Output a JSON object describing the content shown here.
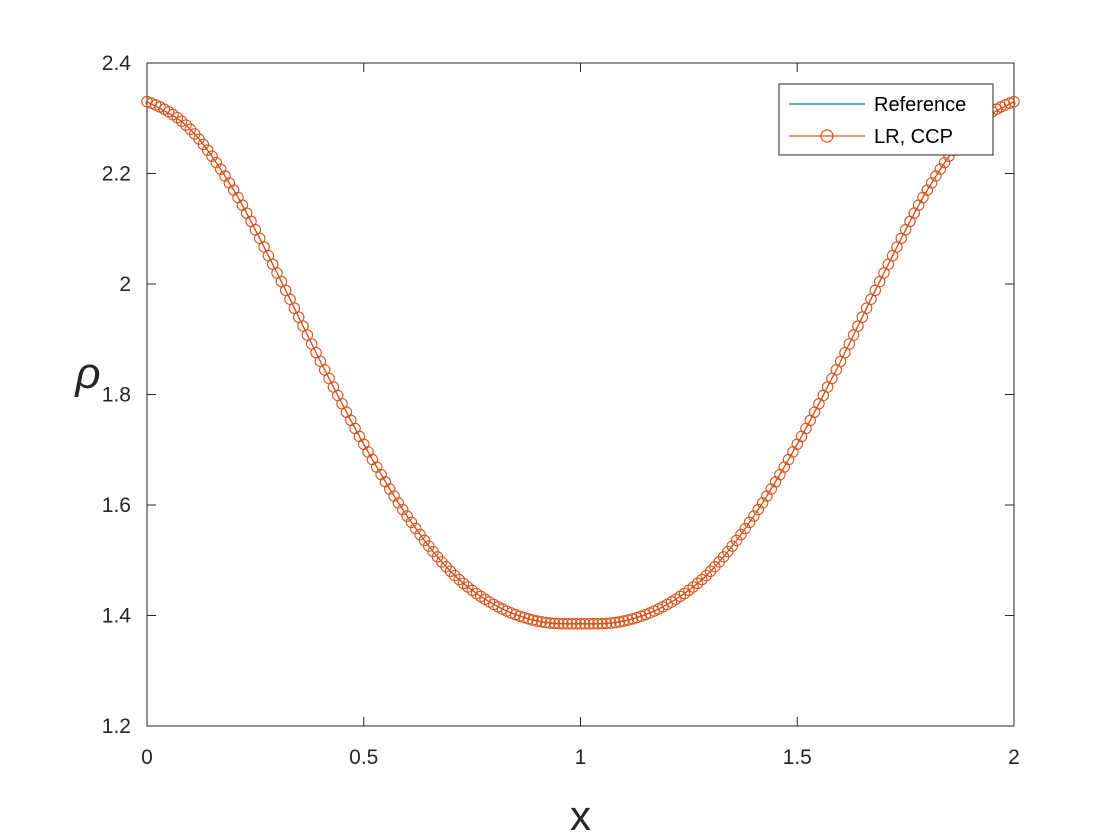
{
  "chart_data": {
    "type": "line",
    "xlabel": "x",
    "ylabel": "ρ",
    "xlim": [
      0,
      2
    ],
    "ylim": [
      1.2,
      2.4
    ],
    "xticks": [
      0,
      0.5,
      1,
      1.5,
      2
    ],
    "xtick_labels": [
      "0",
      "0.5",
      "1",
      "1.5",
      "2"
    ],
    "yticks": [
      1.2,
      1.4,
      1.6,
      1.8,
      2.0,
      2.2,
      2.4
    ],
    "ytick_labels": [
      "1.2",
      "1.4",
      "1.6",
      "1.8",
      "2",
      "2.2",
      "2.4"
    ],
    "grid": false,
    "legend_position": "top-right",
    "x": [
      0,
      0.1,
      0.2,
      0.3,
      0.4,
      0.5,
      0.6,
      0.7,
      0.8,
      0.9,
      1.0,
      1.1,
      1.2,
      1.3,
      1.4,
      1.5,
      1.6,
      1.7,
      1.8,
      1.9,
      2.0
    ],
    "series": [
      {
        "name": "Reference",
        "color": "#0072BD",
        "marker": "none",
        "values": [
          2.33,
          2.28,
          2.17,
          2.02,
          1.86,
          1.71,
          1.58,
          1.48,
          1.42,
          1.39,
          1.385,
          1.39,
          1.42,
          1.48,
          1.58,
          1.71,
          1.86,
          2.02,
          2.17,
          2.28,
          2.33
        ]
      },
      {
        "name": "LR, CCP",
        "color": "#D95319",
        "marker": "circle",
        "values": [
          2.33,
          2.28,
          2.17,
          2.02,
          1.86,
          1.71,
          1.58,
          1.48,
          1.42,
          1.39,
          1.385,
          1.39,
          1.42,
          1.48,
          1.58,
          1.71,
          1.86,
          2.02,
          2.17,
          2.28,
          2.33
        ]
      }
    ]
  }
}
